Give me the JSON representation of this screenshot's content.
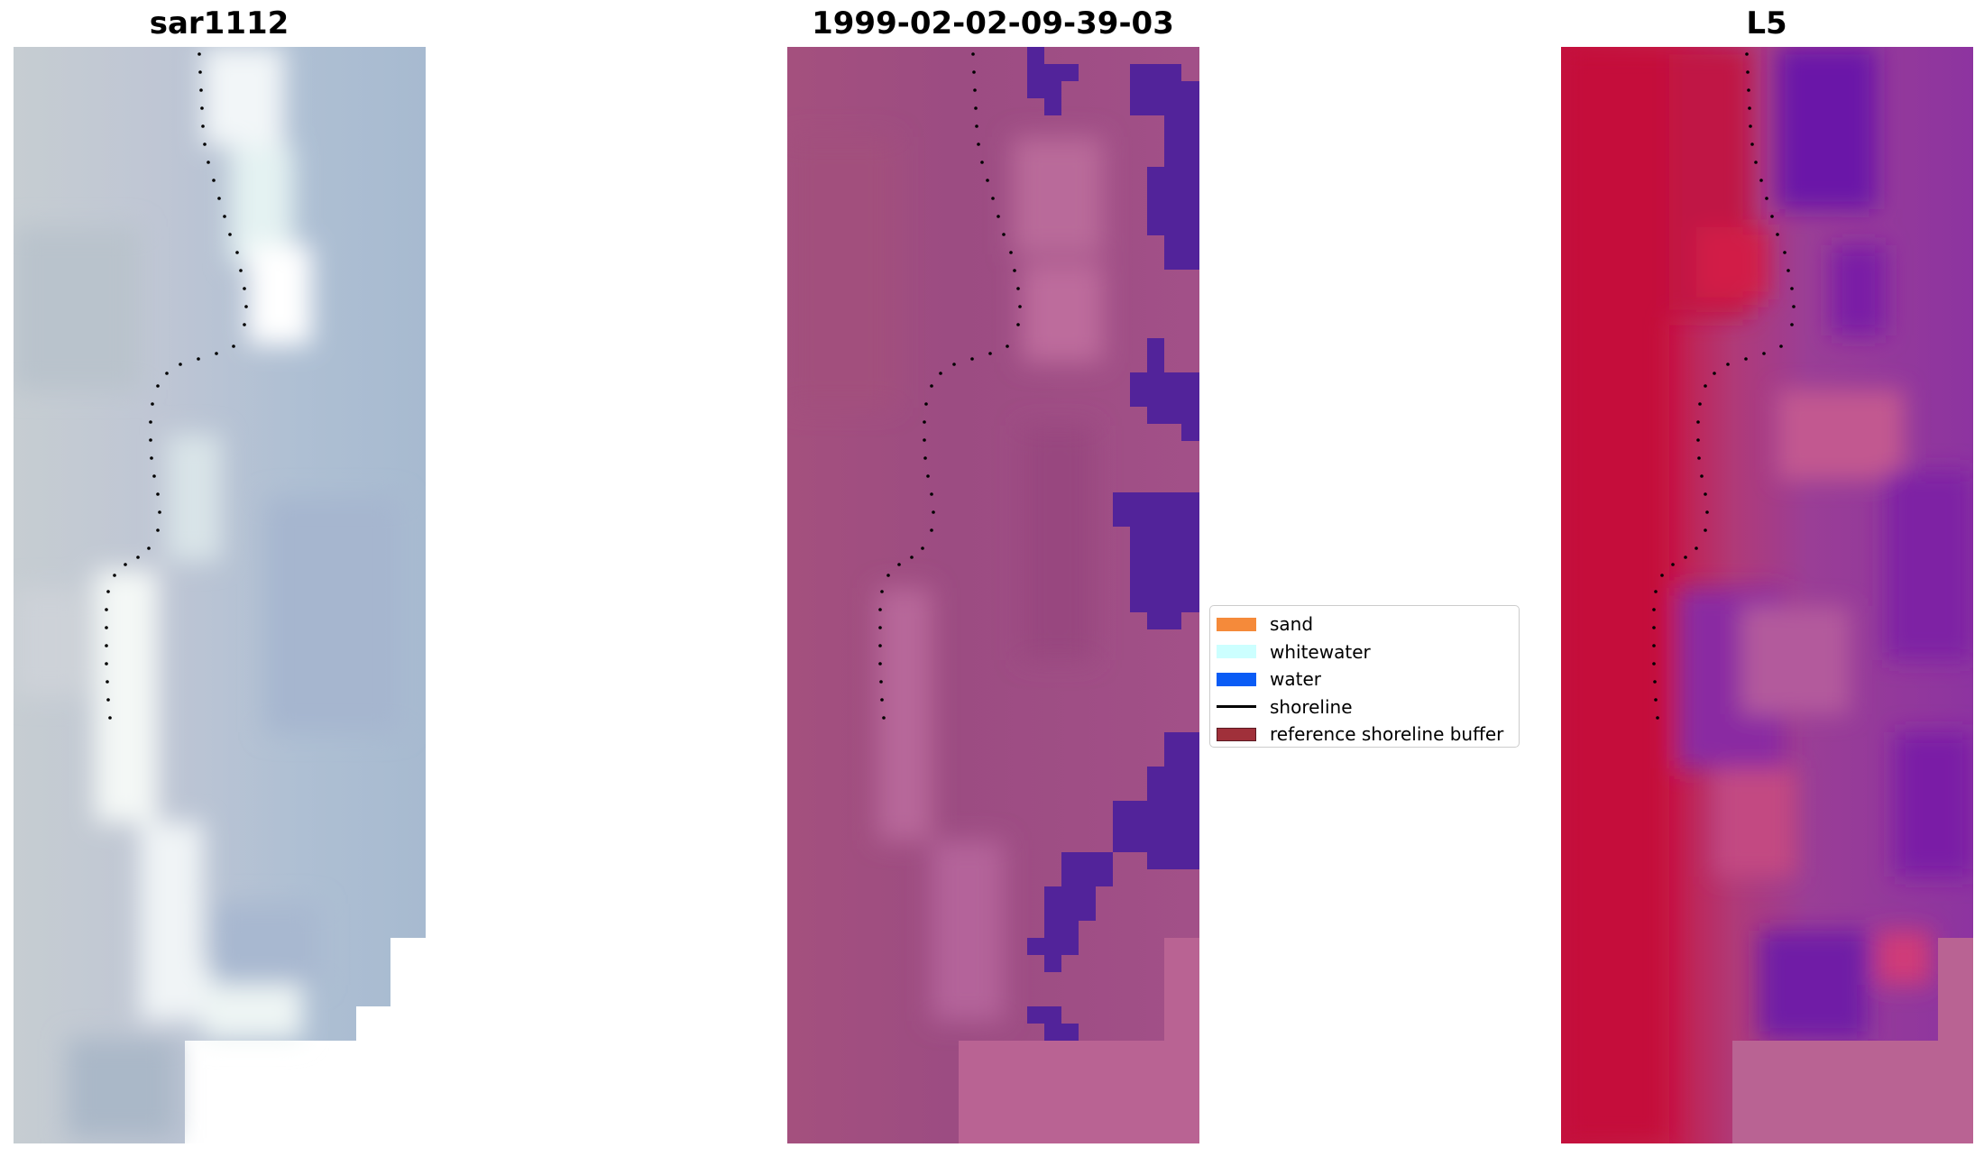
{
  "panels": [
    {
      "title": "sar1112"
    },
    {
      "title": "1999-02-02-09-39-03"
    },
    {
      "title": "L5"
    }
  ],
  "legend": {
    "items": [
      {
        "label": "sand",
        "color": "#f58a3a",
        "kind": "patch"
      },
      {
        "label": "whitewater",
        "color": "#ccffff",
        "kind": "patch"
      },
      {
        "label": "water",
        "color": "#0a5cf5",
        "kind": "patch"
      },
      {
        "label": "shoreline",
        "color": "#000000",
        "kind": "line"
      },
      {
        "label": "reference shoreline buffer",
        "color": "#a0303a",
        "kind": "patch"
      }
    ]
  }
}
